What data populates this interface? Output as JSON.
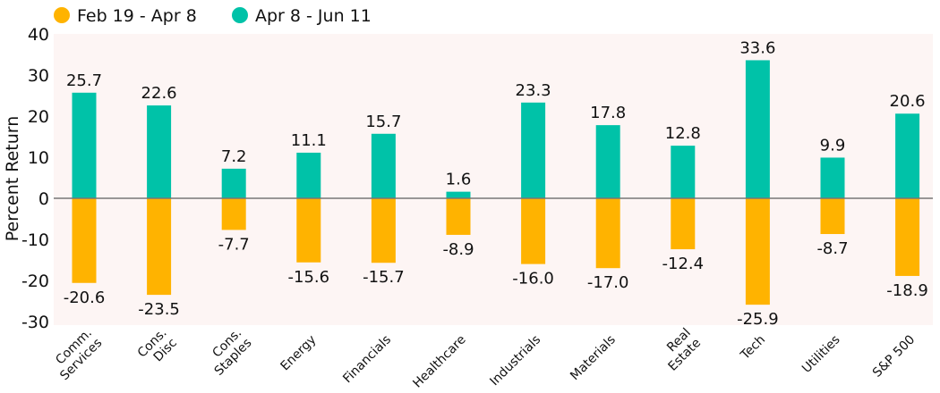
{
  "chart_data": {
    "type": "bar",
    "title": "",
    "xlabel": "",
    "ylabel": "Percent Return",
    "ylim": [
      -30,
      40
    ],
    "yticks": [
      40,
      30,
      20,
      10,
      0,
      -10,
      -20,
      -30
    ],
    "grid": false,
    "legend_position": "top-left",
    "categories": [
      [
        "Comm.",
        "Services"
      ],
      [
        "Cons.",
        "Disc"
      ],
      [
        "Cons.",
        "Staples"
      ],
      [
        "Energy"
      ],
      [
        "Financials"
      ],
      [
        "Healthcare"
      ],
      [
        "Industrials"
      ],
      [
        "Materials"
      ],
      [
        "Real",
        "Estate"
      ],
      [
        "Tech"
      ],
      [
        "Utilities"
      ],
      [
        "S&P 500"
      ]
    ],
    "series": [
      {
        "name": "Feb 19 - Apr 8",
        "color": "#FFB300",
        "values": [
          -20.6,
          -23.5,
          -7.7,
          -15.6,
          -15.7,
          -8.9,
          -16.0,
          -17.0,
          -12.4,
          -25.9,
          -8.7,
          -18.9
        ]
      },
      {
        "name": "Apr 8 - Jun 11",
        "color": "#00C2A8",
        "values": [
          25.7,
          22.6,
          7.2,
          11.1,
          15.7,
          1.6,
          23.3,
          17.8,
          12.8,
          33.6,
          9.9,
          20.6
        ]
      }
    ],
    "plot_background": "#FDF5F4"
  }
}
